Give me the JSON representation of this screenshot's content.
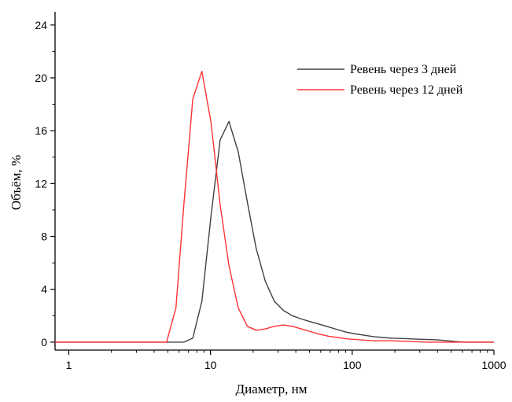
{
  "chart_data": {
    "type": "line",
    "xlabel": "Диаметр, нм",
    "ylabel": "Объём, %",
    "xscale": "log",
    "xlim": [
      0.8,
      1000
    ],
    "ylim": [
      -0.6,
      25
    ],
    "x_ticks": [
      1,
      10,
      100,
      1000
    ],
    "x_tick_labels": [
      "1",
      "10",
      "100",
      "1000"
    ],
    "y_ticks": [
      0,
      4,
      8,
      12,
      16,
      20,
      24
    ],
    "y_tick_labels": [
      "0",
      "4",
      "8",
      "12",
      "16",
      "20",
      "24"
    ],
    "legend_position": "top-right",
    "series": [
      {
        "name": "Ревень через 3 дней",
        "color": "#404040",
        "x": [
          0.8,
          6.5,
          7.5,
          8.7,
          10.1,
          11.7,
          13.5,
          15.7,
          18.2,
          21.0,
          24.4,
          28.2,
          32.7,
          37.8,
          43.8,
          50.7,
          58.8,
          68.1,
          78.8,
          91.3,
          105.7,
          122.4,
          141.8,
          164.2,
          190.1,
          220.2,
          255.0,
          295.3,
          342.0,
          396.1,
          458.7,
          531.2,
          615.1,
          1000
        ],
        "y": [
          0,
          0,
          0.3,
          3.1,
          9.6,
          15.3,
          16.7,
          14.4,
          10.6,
          7.1,
          4.6,
          3.1,
          2.4,
          2.0,
          1.75,
          1.55,
          1.35,
          1.15,
          0.95,
          0.75,
          0.62,
          0.52,
          0.42,
          0.35,
          0.3,
          0.28,
          0.25,
          0.22,
          0.2,
          0.18,
          0.12,
          0.05,
          0,
          0
        ]
      },
      {
        "name": "Ревень через 12 дней",
        "color": "#ff3333",
        "x": [
          0.8,
          4.9,
          5.7,
          6.5,
          7.5,
          8.7,
          10.1,
          11.7,
          13.5,
          15.7,
          18.2,
          21.0,
          24.4,
          28.2,
          32.7,
          37.8,
          43.8,
          50.7,
          58.8,
          68.1,
          78.8,
          91.3,
          105.7,
          122.4,
          141.8,
          164.2,
          190.1,
          255.0,
          342.0,
          1000
        ],
        "y": [
          0,
          0,
          2.6,
          10.5,
          18.4,
          20.5,
          16.6,
          10.4,
          5.8,
          2.6,
          1.2,
          0.9,
          1.0,
          1.2,
          1.3,
          1.2,
          1.0,
          0.8,
          0.6,
          0.45,
          0.35,
          0.25,
          0.2,
          0.15,
          0.1,
          0.1,
          0.1,
          0.05,
          0,
          0
        ]
      }
    ]
  }
}
